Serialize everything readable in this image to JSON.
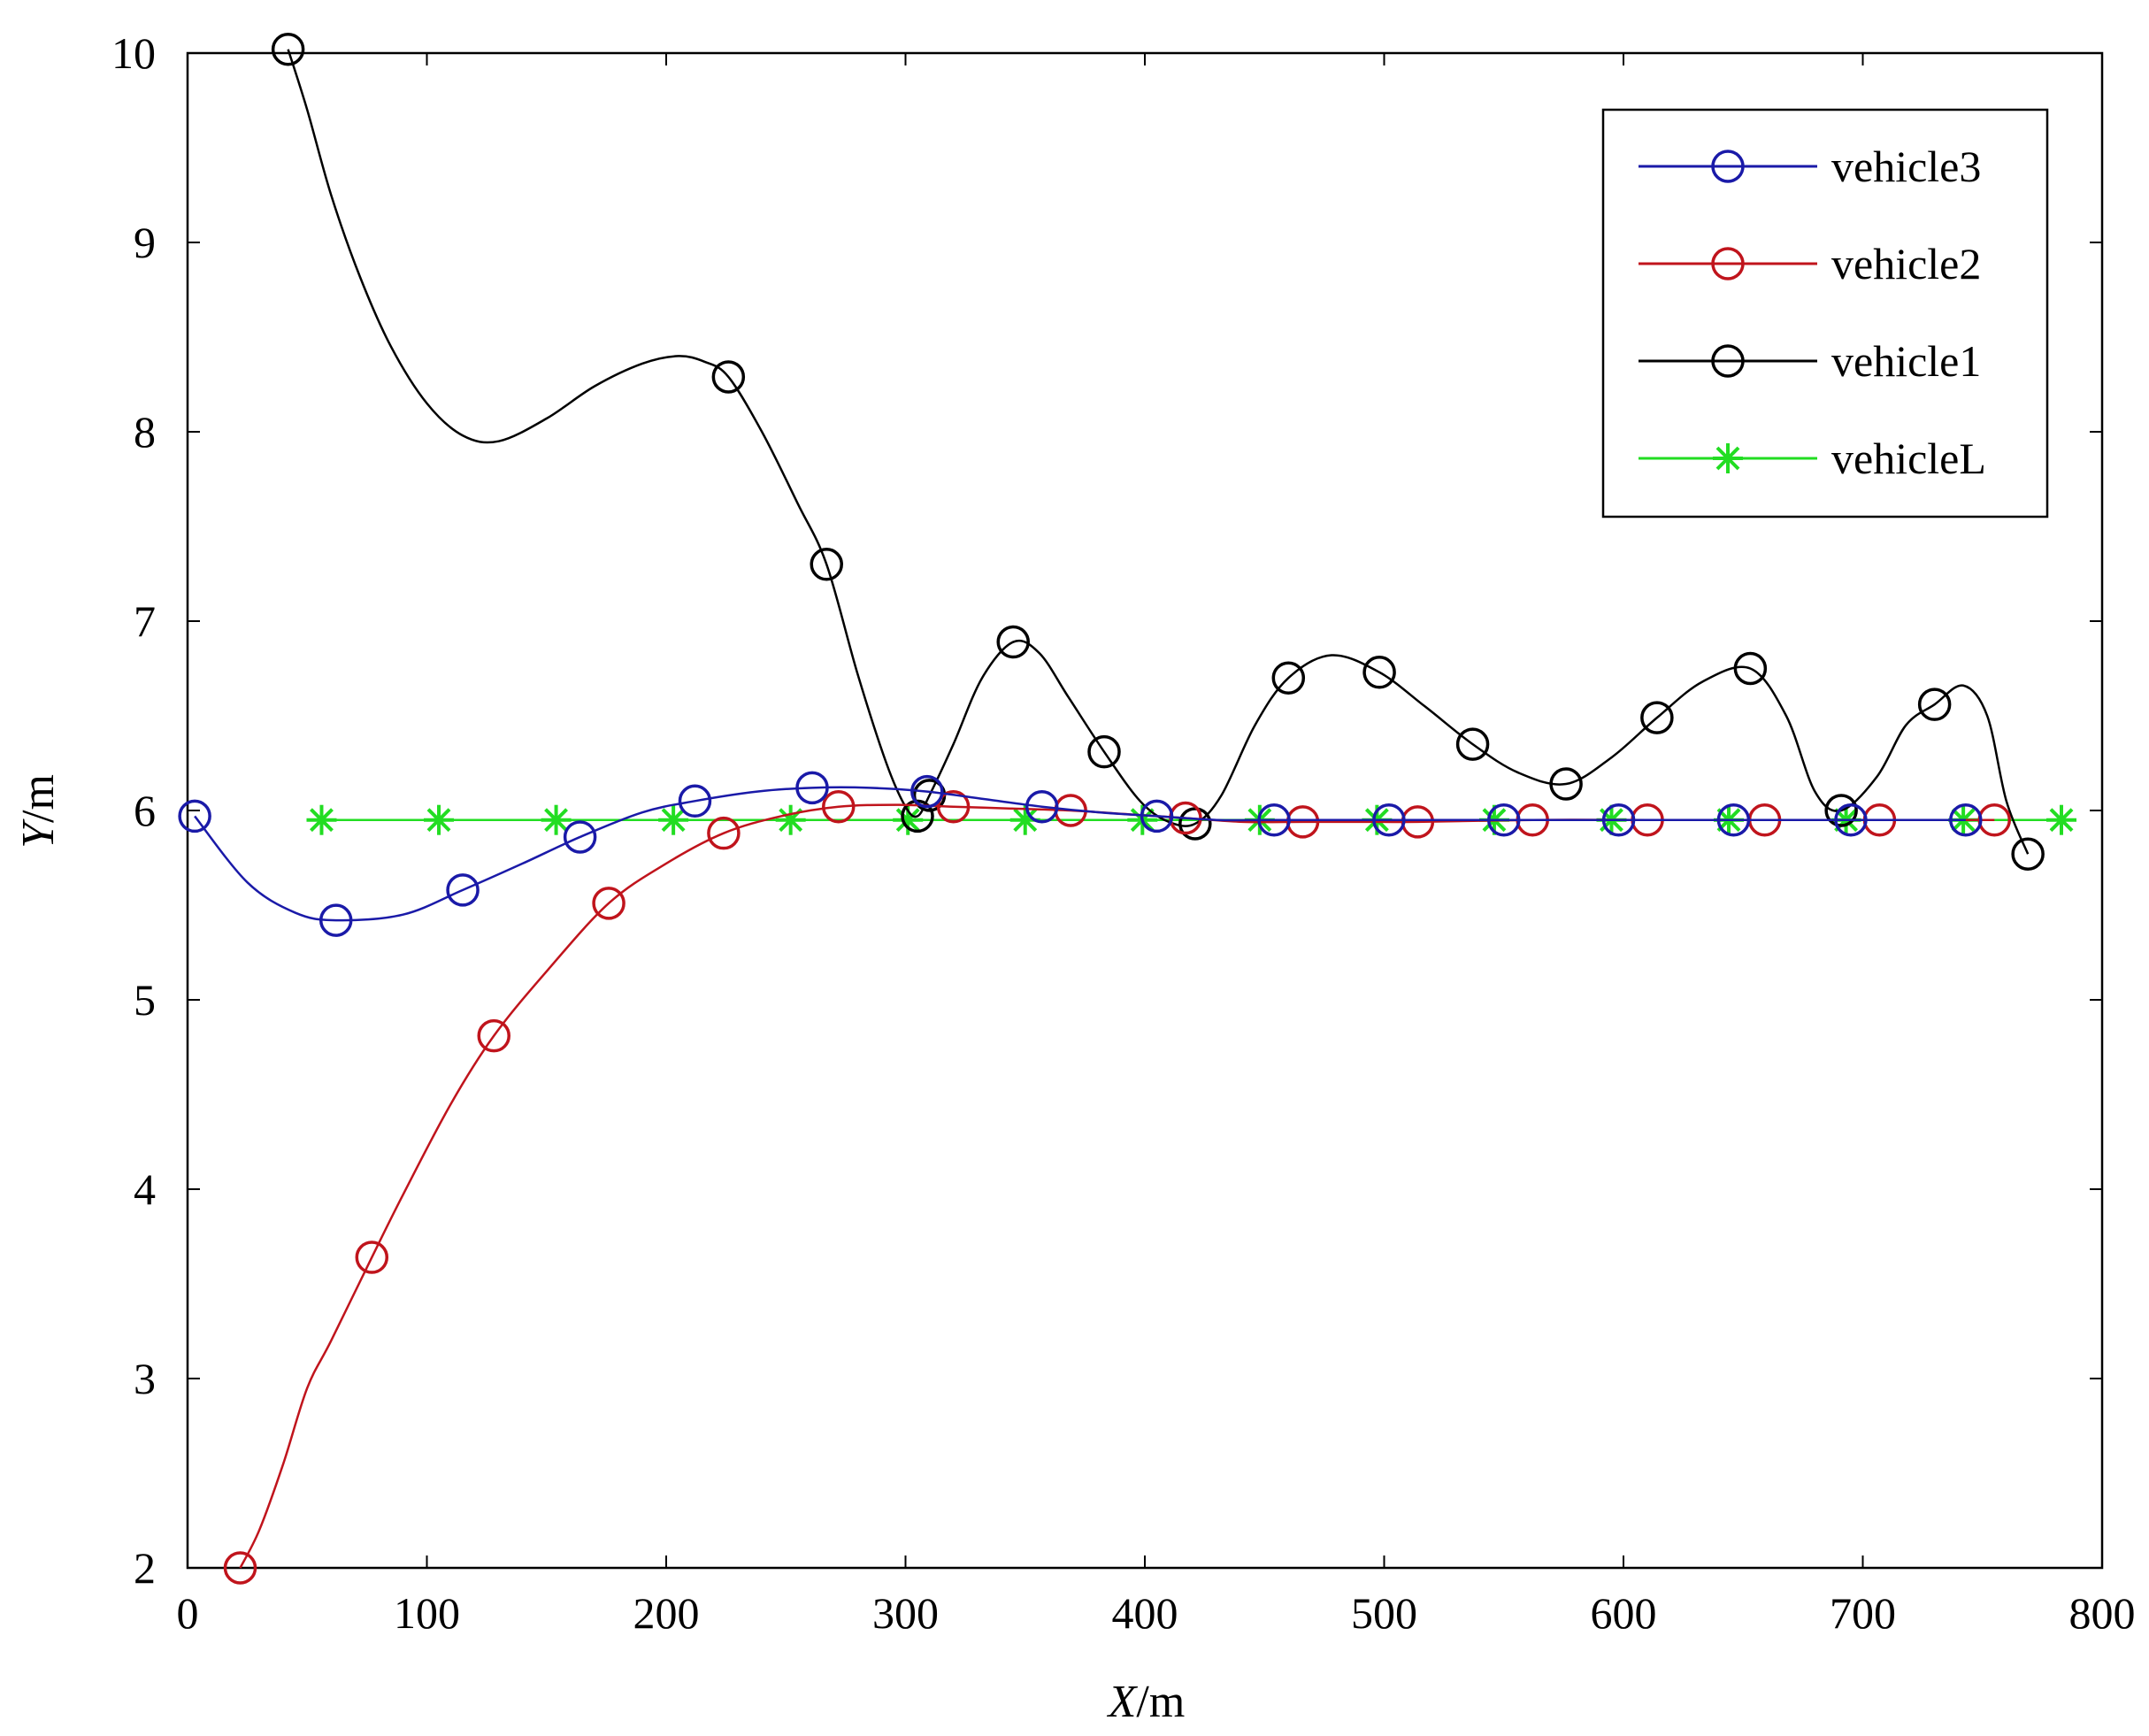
{
  "chart_data": {
    "type": "line",
    "xlabel": {
      "var": "X",
      "unit": "/m"
    },
    "ylabel": {
      "var": "Y",
      "unit": "/m"
    },
    "xlim": [
      0,
      800
    ],
    "ylim": [
      2,
      10
    ],
    "xticks": [
      "0",
      "100",
      "200",
      "300",
      "400",
      "500",
      "600",
      "700",
      "800"
    ],
    "yticks": [
      "2",
      "3",
      "4",
      "5",
      "6",
      "7",
      "8",
      "9",
      "10"
    ],
    "grid": false,
    "legend_position": "top-right",
    "series": [
      {
        "name": "vehicle3",
        "color": "#1a1aa8",
        "marker": "circle",
        "points": [
          [
            3,
            5.97
          ],
          [
            62,
            5.42
          ],
          [
            115,
            5.58
          ],
          [
            164,
            5.86
          ],
          [
            212,
            6.05
          ],
          [
            261,
            6.12
          ],
          [
            309,
            6.1
          ],
          [
            357,
            6.02
          ],
          [
            405,
            5.97
          ],
          [
            454,
            5.95
          ],
          [
            502,
            5.95
          ],
          [
            550,
            5.95
          ],
          [
            598,
            5.95
          ],
          [
            646,
            5.95
          ],
          [
            695,
            5.95
          ],
          [
            743,
            5.95
          ]
        ],
        "curve": [
          [
            3,
            5.97
          ],
          [
            25,
            5.62
          ],
          [
            45,
            5.46
          ],
          [
            62,
            5.42
          ],
          [
            90,
            5.45
          ],
          [
            115,
            5.58
          ],
          [
            140,
            5.72
          ],
          [
            164,
            5.86
          ],
          [
            190,
            5.99
          ],
          [
            212,
            6.05
          ],
          [
            238,
            6.1
          ],
          [
            261,
            6.12
          ],
          [
            285,
            6.12
          ],
          [
            309,
            6.1
          ],
          [
            333,
            6.06
          ],
          [
            357,
            6.02
          ],
          [
            381,
            5.99
          ],
          [
            405,
            5.97
          ],
          [
            430,
            5.95
          ],
          [
            454,
            5.95
          ],
          [
            502,
            5.95
          ],
          [
            550,
            5.95
          ],
          [
            598,
            5.95
          ],
          [
            646,
            5.95
          ],
          [
            695,
            5.95
          ],
          [
            743,
            5.95
          ]
        ]
      },
      {
        "name": "vehicle2",
        "color": "#c0141c",
        "marker": "circle",
        "points": [
          [
            22,
            2.0
          ],
          [
            77,
            3.64
          ],
          [
            128,
            4.81
          ],
          [
            176,
            5.51
          ],
          [
            224,
            5.88
          ],
          [
            272,
            6.02
          ],
          [
            320,
            6.02
          ],
          [
            369,
            6.0
          ],
          [
            417,
            5.96
          ],
          [
            466,
            5.94
          ],
          [
            514,
            5.94
          ],
          [
            562,
            5.95
          ],
          [
            610,
            5.95
          ],
          [
            659,
            5.95
          ],
          [
            707,
            5.95
          ],
          [
            755,
            5.95
          ]
        ],
        "curve": [
          [
            22,
            2.0
          ],
          [
            30,
            2.2
          ],
          [
            40,
            2.55
          ],
          [
            50,
            2.95
          ],
          [
            60,
            3.2
          ],
          [
            77,
            3.64
          ],
          [
            90,
            3.97
          ],
          [
            110,
            4.45
          ],
          [
            128,
            4.81
          ],
          [
            150,
            5.15
          ],
          [
            176,
            5.51
          ],
          [
            200,
            5.72
          ],
          [
            224,
            5.88
          ],
          [
            248,
            5.97
          ],
          [
            272,
            6.02
          ],
          [
            296,
            6.03
          ],
          [
            320,
            6.02
          ],
          [
            345,
            6.01
          ],
          [
            369,
            6.0
          ],
          [
            393,
            5.98
          ],
          [
            417,
            5.96
          ],
          [
            441,
            5.94
          ],
          [
            466,
            5.94
          ],
          [
            490,
            5.94
          ],
          [
            514,
            5.94
          ],
          [
            562,
            5.95
          ],
          [
            610,
            5.95
          ],
          [
            659,
            5.95
          ],
          [
            707,
            5.95
          ],
          [
            755,
            5.95
          ]
        ]
      },
      {
        "name": "vehicle1",
        "color": "#000000",
        "marker": "circle",
        "points": [
          [
            42,
            10.02
          ],
          [
            226,
            8.29
          ],
          [
            267,
            7.3
          ],
          [
            305,
            5.97
          ],
          [
            310,
            6.08
          ],
          [
            345,
            6.89
          ],
          [
            383,
            6.31
          ],
          [
            421,
            5.93
          ],
          [
            460,
            6.7
          ],
          [
            498,
            6.73
          ],
          [
            537,
            6.35
          ],
          [
            576,
            6.14
          ],
          [
            614,
            6.49
          ],
          [
            653,
            6.75
          ],
          [
            691,
            6.0
          ],
          [
            730,
            6.56
          ],
          [
            769,
            5.77
          ]
        ],
        "curve": [
          [
            42,
            10.02
          ],
          [
            50,
            9.7
          ],
          [
            60,
            9.25
          ],
          [
            72,
            8.82
          ],
          [
            85,
            8.45
          ],
          [
            100,
            8.15
          ],
          [
            115,
            7.98
          ],
          [
            130,
            7.95
          ],
          [
            150,
            8.07
          ],
          [
            170,
            8.24
          ],
          [
            190,
            8.36
          ],
          [
            205,
            8.4
          ],
          [
            216,
            8.37
          ],
          [
            226,
            8.29
          ],
          [
            240,
            8.0
          ],
          [
            255,
            7.62
          ],
          [
            267,
            7.3
          ],
          [
            280,
            6.72
          ],
          [
            292,
            6.25
          ],
          [
            300,
            6.02
          ],
          [
            305,
            5.97
          ],
          [
            310,
            6.08
          ],
          [
            320,
            6.35
          ],
          [
            332,
            6.7
          ],
          [
            345,
            6.89
          ],
          [
            356,
            6.83
          ],
          [
            368,
            6.6
          ],
          [
            383,
            6.31
          ],
          [
            398,
            6.05
          ],
          [
            410,
            5.94
          ],
          [
            421,
            5.93
          ],
          [
            432,
            6.08
          ],
          [
            446,
            6.45
          ],
          [
            460,
            6.7
          ],
          [
            478,
            6.82
          ],
          [
            498,
            6.73
          ],
          [
            517,
            6.55
          ],
          [
            537,
            6.35
          ],
          [
            556,
            6.2
          ],
          [
            576,
            6.14
          ],
          [
            595,
            6.28
          ],
          [
            614,
            6.49
          ],
          [
            633,
            6.68
          ],
          [
            653,
            6.75
          ],
          [
            668,
            6.5
          ],
          [
            680,
            6.1
          ],
          [
            691,
            6.0
          ],
          [
            706,
            6.18
          ],
          [
            718,
            6.45
          ],
          [
            730,
            6.56
          ],
          [
            742,
            6.66
          ],
          [
            752,
            6.5
          ],
          [
            760,
            6.05
          ],
          [
            769,
            5.77
          ]
        ]
      },
      {
        "name": "vehicleL",
        "color": "#22dd22",
        "marker": "star",
        "points": [
          [
            56,
            5.95
          ],
          [
            105,
            5.95
          ],
          [
            154,
            5.95
          ],
          [
            203,
            5.95
          ],
          [
            252,
            5.95
          ],
          [
            301,
            5.95
          ],
          [
            350,
            5.95
          ],
          [
            399,
            5.95
          ],
          [
            448,
            5.95
          ],
          [
            497,
            5.95
          ],
          [
            546,
            5.95
          ],
          [
            595,
            5.95
          ],
          [
            644,
            5.95
          ],
          [
            693,
            5.95
          ],
          [
            742,
            5.95
          ],
          [
            783,
            5.95
          ]
        ],
        "curve": [
          [
            56,
            5.95
          ],
          [
            783,
            5.95
          ]
        ]
      }
    ]
  }
}
